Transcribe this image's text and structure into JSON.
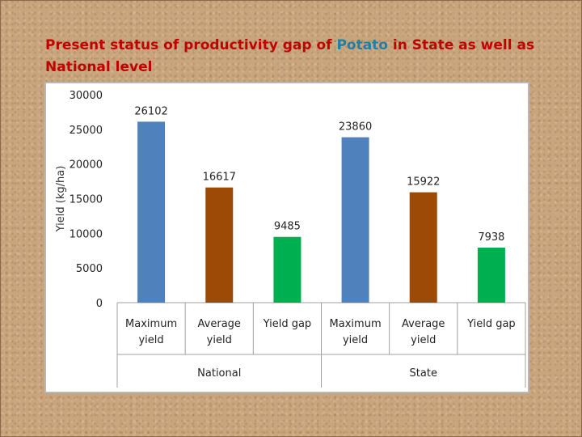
{
  "title": {
    "part1": "Present status of productivity gap of ",
    "highlight": "Potato",
    "part2": " in State as well as National level"
  },
  "chart_data": {
    "type": "bar",
    "ylabel": "Yield (kg/ha)",
    "ylim": [
      0,
      30000
    ],
    "yticks": [
      0,
      5000,
      10000,
      15000,
      20000,
      25000,
      30000
    ],
    "groups": [
      {
        "name": "National",
        "bars": [
          {
            "label": "Maximum yield",
            "value": 26102,
            "color": "#4f81bd"
          },
          {
            "label": "Average yield",
            "value": 16617,
            "color": "#9c4a06"
          },
          {
            "label": "Yield gap",
            "value": 9485,
            "color": "#00b050"
          }
        ]
      },
      {
        "name": "State",
        "bars": [
          {
            "label": "Maximum yield",
            "value": 23860,
            "color": "#4f81bd"
          },
          {
            "label": "Average yield",
            "value": 15922,
            "color": "#9c4a06"
          },
          {
            "label": "Yield gap",
            "value": 7938,
            "color": "#00b050"
          }
        ]
      }
    ],
    "grid": false,
    "legend": "none"
  }
}
